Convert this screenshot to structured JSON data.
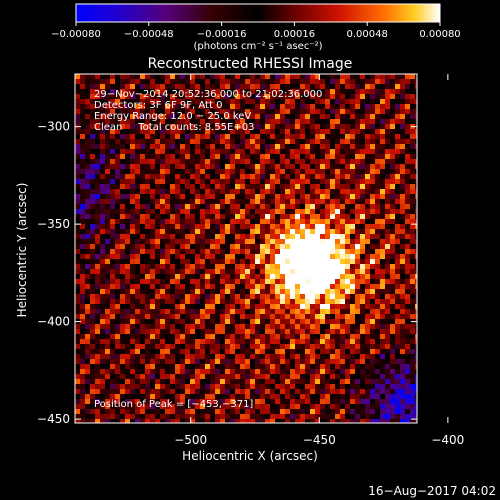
{
  "chart_data": {
    "type": "heatmap",
    "title": "Reconstructed RHESSI Image",
    "xlabel": "Heliocentric X (arcsec)",
    "ylabel": "Heliocentric Y (arcsec)",
    "xlim": [
      -545,
      -412
    ],
    "ylim": [
      -452,
      -273
    ],
    "x_ticks": [
      -500,
      -450,
      -400
    ],
    "y_ticks": [
      -450,
      -400,
      -350,
      -300
    ],
    "x_tick_labels": [
      "−500",
      "−450",
      "−400"
    ],
    "y_tick_labels": [
      "−450",
      "−400",
      "−350",
      "−300"
    ],
    "peak": [
      -453,
      -371
    ],
    "colorbar": {
      "range": [
        -0.0008,
        0.0008
      ],
      "ticks": [
        -0.0008,
        -0.00048,
        -0.00016,
        0.00016,
        0.00048,
        0.0008
      ],
      "tick_labels": [
        "−0.00080",
        "−0.00048",
        "−0.00016",
        "0.00016",
        "0.00048",
        "0.00080"
      ],
      "units": "(photons cm⁻² s⁻¹ asec⁻²)"
    },
    "annotations": [
      "29−Nov−2014 20:52:36.000 to 21:02:36.000",
      "Detectors: 3F 6F 9F, Att 0",
      "Energy Range: 12.0 − 25.0 keV",
      "Clean     Total counts: 8.55E+03"
    ],
    "peak_label": "Position of Peak = [−453,−371]"
  },
  "footer": {
    "timestamp": "16−Aug−2017 04:02"
  }
}
